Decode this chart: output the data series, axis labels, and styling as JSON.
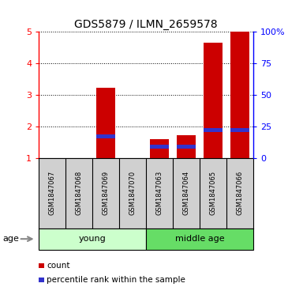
{
  "title": "GDS5879 / ILMN_2659578",
  "samples": [
    "GSM1847067",
    "GSM1847068",
    "GSM1847069",
    "GSM1847070",
    "GSM1847063",
    "GSM1847064",
    "GSM1847065",
    "GSM1847066"
  ],
  "count_values": [
    0,
    0,
    3.23,
    0,
    1.58,
    1.73,
    4.65,
    5.0
  ],
  "percentile_values": [
    0,
    0,
    1.62,
    0,
    1.28,
    1.28,
    1.82,
    1.82
  ],
  "ylim_left": [
    1,
    5
  ],
  "ylim_right": [
    0,
    100
  ],
  "yticks_left": [
    1,
    2,
    3,
    4,
    5
  ],
  "yticks_right": [
    0,
    25,
    50,
    75,
    100
  ],
  "ytick_labels_right": [
    "0",
    "25",
    "50",
    "75",
    "100%"
  ],
  "bar_color": "#CC0000",
  "percentile_color": "#3333CC",
  "bar_width": 0.7,
  "age_label": "age",
  "legend_count": "count",
  "legend_percentile": "percentile rank within the sample",
  "group_young_color": "#CCFFCC",
  "group_middle_color": "#66DD66",
  "sample_box_color": "#D0D0D0",
  "title_fontsize": 10,
  "tick_fontsize": 8,
  "sample_fontsize": 6,
  "group_fontsize": 8
}
